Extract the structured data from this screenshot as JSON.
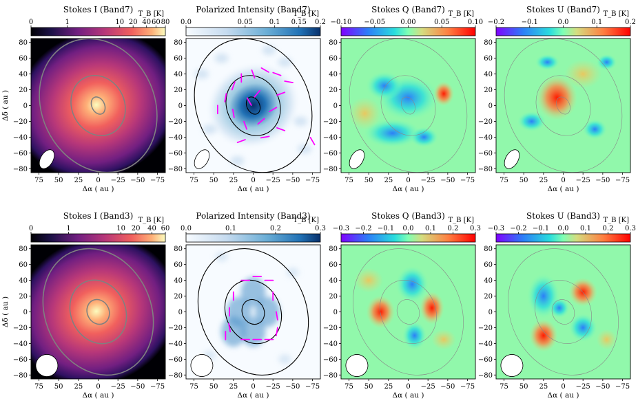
{
  "chart_data": [
    {
      "type": "heatmap",
      "band": "Band7",
      "quantity": "Stokes I",
      "title": "Stokes I (Band7)",
      "colormap": "magma",
      "colorbar_label": "T_B [K]",
      "colorbar_ticks": [
        "0",
        "1",
        "10",
        "20",
        "40",
        "60",
        "80"
      ],
      "colorbar_range": [
        0,
        80
      ],
      "xlabel": "Δα ( au )",
      "ylabel": "Δδ ( au )",
      "xticks": [
        "75",
        "50",
        "25",
        "0",
        "−25",
        "−50",
        "−75"
      ],
      "yticks": [
        "80",
        "60",
        "40",
        "20",
        "0",
        "−20",
        "−40",
        "−60",
        "−80"
      ],
      "xlim": [
        85,
        -85
      ],
      "ylim": [
        -85,
        85
      ],
      "contour_color": "#808080",
      "contour_radii_au": [
        [
          7,
          10
        ],
        [
          28,
          33
        ],
        [
          60,
          75
        ]
      ]
    },
    {
      "type": "heatmap",
      "band": "Band7",
      "quantity": "Polarized Intensity",
      "title": "Polarized Intensity (Band7)",
      "colormap": "Blues",
      "colorbar_label": "T_B [K]",
      "colorbar_ticks": [
        "0.0",
        "0.05",
        "0.1",
        "0.15",
        "0.2"
      ],
      "colorbar_range": [
        0,
        0.2
      ],
      "xlabel": "Δα ( au )",
      "xticks": [
        "75",
        "50",
        "25",
        "0",
        "−25",
        "−50",
        "−75"
      ],
      "yticks": [
        "80",
        "60",
        "40",
        "20",
        "0",
        "−20",
        "−40",
        "−60",
        "−80"
      ],
      "contour_color": "#000000",
      "vector_color": "#ff00ff",
      "note": "magenta polarization vectors overlaid"
    },
    {
      "type": "heatmap",
      "band": "Band7",
      "quantity": "Stokes Q",
      "title": "Stokes Q (Band7)",
      "colormap": "rainbow",
      "colorbar_label": "T_B [K]",
      "colorbar_ticks": [
        "−0.10",
        "−0.05",
        "0.00",
        "0.05",
        "0.10"
      ],
      "colorbar_range": [
        -0.1,
        0.1
      ],
      "xlabel": "Δα ( au )",
      "xticks": [
        "75",
        "50",
        "25",
        "0",
        "−25",
        "−50",
        "−75"
      ],
      "yticks": [
        "80",
        "60",
        "40",
        "20",
        "0",
        "−20",
        "−40",
        "−60",
        "−80"
      ],
      "contour_color": "#888888"
    },
    {
      "type": "heatmap",
      "band": "Band7",
      "quantity": "Stokes U",
      "title": "Stokes U (Band7)",
      "colormap": "rainbow",
      "colorbar_label": "T_B [K]",
      "colorbar_ticks": [
        "−0.2",
        "−0.1",
        "0.0",
        "0.1",
        "0.2"
      ],
      "colorbar_range": [
        -0.2,
        0.2
      ],
      "xlabel": "Δα ( au )",
      "xticks": [
        "75",
        "50",
        "25",
        "0",
        "−25",
        "−50",
        "−75"
      ],
      "yticks": [
        "80",
        "60",
        "40",
        "20",
        "0",
        "−20",
        "−40",
        "−60",
        "−80"
      ],
      "contour_color": "#888888"
    },
    {
      "type": "heatmap",
      "band": "Band3",
      "quantity": "Stokes I",
      "title": "Stokes I (Band3)",
      "colormap": "magma",
      "colorbar_label": "T_B [K]",
      "colorbar_ticks": [
        "0",
        "1",
        "10",
        "20",
        "40",
        "60"
      ],
      "colorbar_range": [
        0,
        60
      ],
      "xlabel": "Δα ( au )",
      "ylabel": "Δδ ( au )",
      "xticks": [
        "75",
        "50",
        "25",
        "0",
        "−25",
        "−50",
        "−75"
      ],
      "yticks": [
        "80",
        "60",
        "40",
        "20",
        "0",
        "−20",
        "−40",
        "−60",
        "−80"
      ],
      "contour_color": "#808080"
    },
    {
      "type": "heatmap",
      "band": "Band3",
      "quantity": "Polarized Intensity",
      "title": "Polarized Intensity (Band3)",
      "colormap": "Blues",
      "colorbar_label": "T_B [K]",
      "colorbar_ticks": [
        "0.0",
        "0.1",
        "0.2",
        "0.3"
      ],
      "colorbar_range": [
        0,
        0.3
      ],
      "xlabel": "Δα ( au )",
      "xticks": [
        "75",
        "50",
        "25",
        "0",
        "−25",
        "−50",
        "−75"
      ],
      "yticks": [
        "80",
        "60",
        "40",
        "20",
        "0",
        "−20",
        "−40",
        "−60",
        "−80"
      ],
      "contour_color": "#000000",
      "vector_color": "#ff00ff"
    },
    {
      "type": "heatmap",
      "band": "Band3",
      "quantity": "Stokes Q",
      "title": "Stokes Q (Band3)",
      "colormap": "rainbow",
      "colorbar_label": "T_B [K]",
      "colorbar_ticks": [
        "−0.3",
        "−0.2",
        "−0.1",
        "0.0",
        "0.1",
        "0.2",
        "0.3"
      ],
      "colorbar_range": [
        -0.3,
        0.3
      ],
      "xlabel": "Δα ( au )",
      "xticks": [
        "75",
        "50",
        "25",
        "0",
        "−25",
        "−50",
        "−75"
      ],
      "yticks": [
        "80",
        "60",
        "40",
        "20",
        "0",
        "−20",
        "−40",
        "−60",
        "−80"
      ],
      "contour_color": "#888888"
    },
    {
      "type": "heatmap",
      "band": "Band3",
      "quantity": "Stokes U",
      "title": "Stokes U (Band3)",
      "colormap": "rainbow",
      "colorbar_label": "T_B [K]",
      "colorbar_ticks": [
        "−0.3",
        "−0.2",
        "−0.1",
        "0.0",
        "0.1",
        "0.2",
        "0.3"
      ],
      "colorbar_range": [
        -0.3,
        0.3
      ],
      "xlabel": "Δα ( au )",
      "xticks": [
        "75",
        "50",
        "25",
        "0",
        "−25",
        "−50",
        "−75"
      ],
      "yticks": [
        "80",
        "60",
        "40",
        "20",
        "0",
        "−20",
        "−40",
        "−60",
        "−80"
      ],
      "contour_color": "#888888"
    }
  ]
}
